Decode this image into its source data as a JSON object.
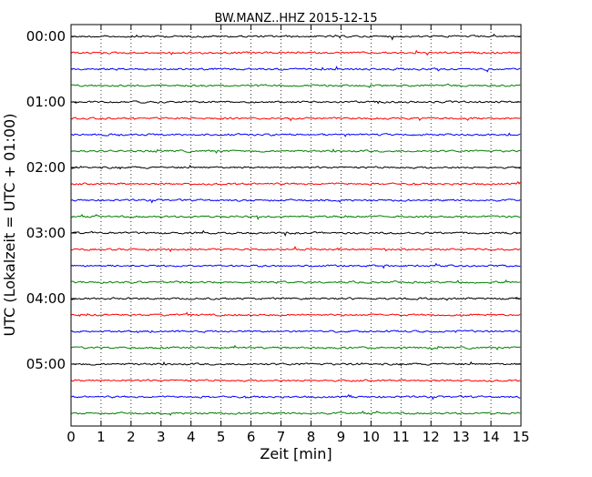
{
  "chart_data": {
    "type": "line",
    "title": "BW.MANZ..HHZ 2015-12-15",
    "xlabel": "Zeit  [min]",
    "ylabel": "UTC (Lokalzeit = UTC + 01:00)",
    "xlim": [
      0,
      15
    ],
    "x_ticks": [
      "0",
      "1",
      "2",
      "3",
      "4",
      "5",
      "6",
      "7",
      "8",
      "9",
      "10",
      "11",
      "12",
      "13",
      "14",
      "15"
    ],
    "y_ticks": [
      "00:00",
      "01:00",
      "02:00",
      "03:00",
      "04:00",
      "05:00"
    ],
    "traces_per_hour": 4,
    "trace_count": 24,
    "trace_colors": [
      "#000000",
      "#ff0000",
      "#0000ff",
      "#008000"
    ],
    "grid": "vertical dotted at each minute",
    "legend": "none"
  }
}
